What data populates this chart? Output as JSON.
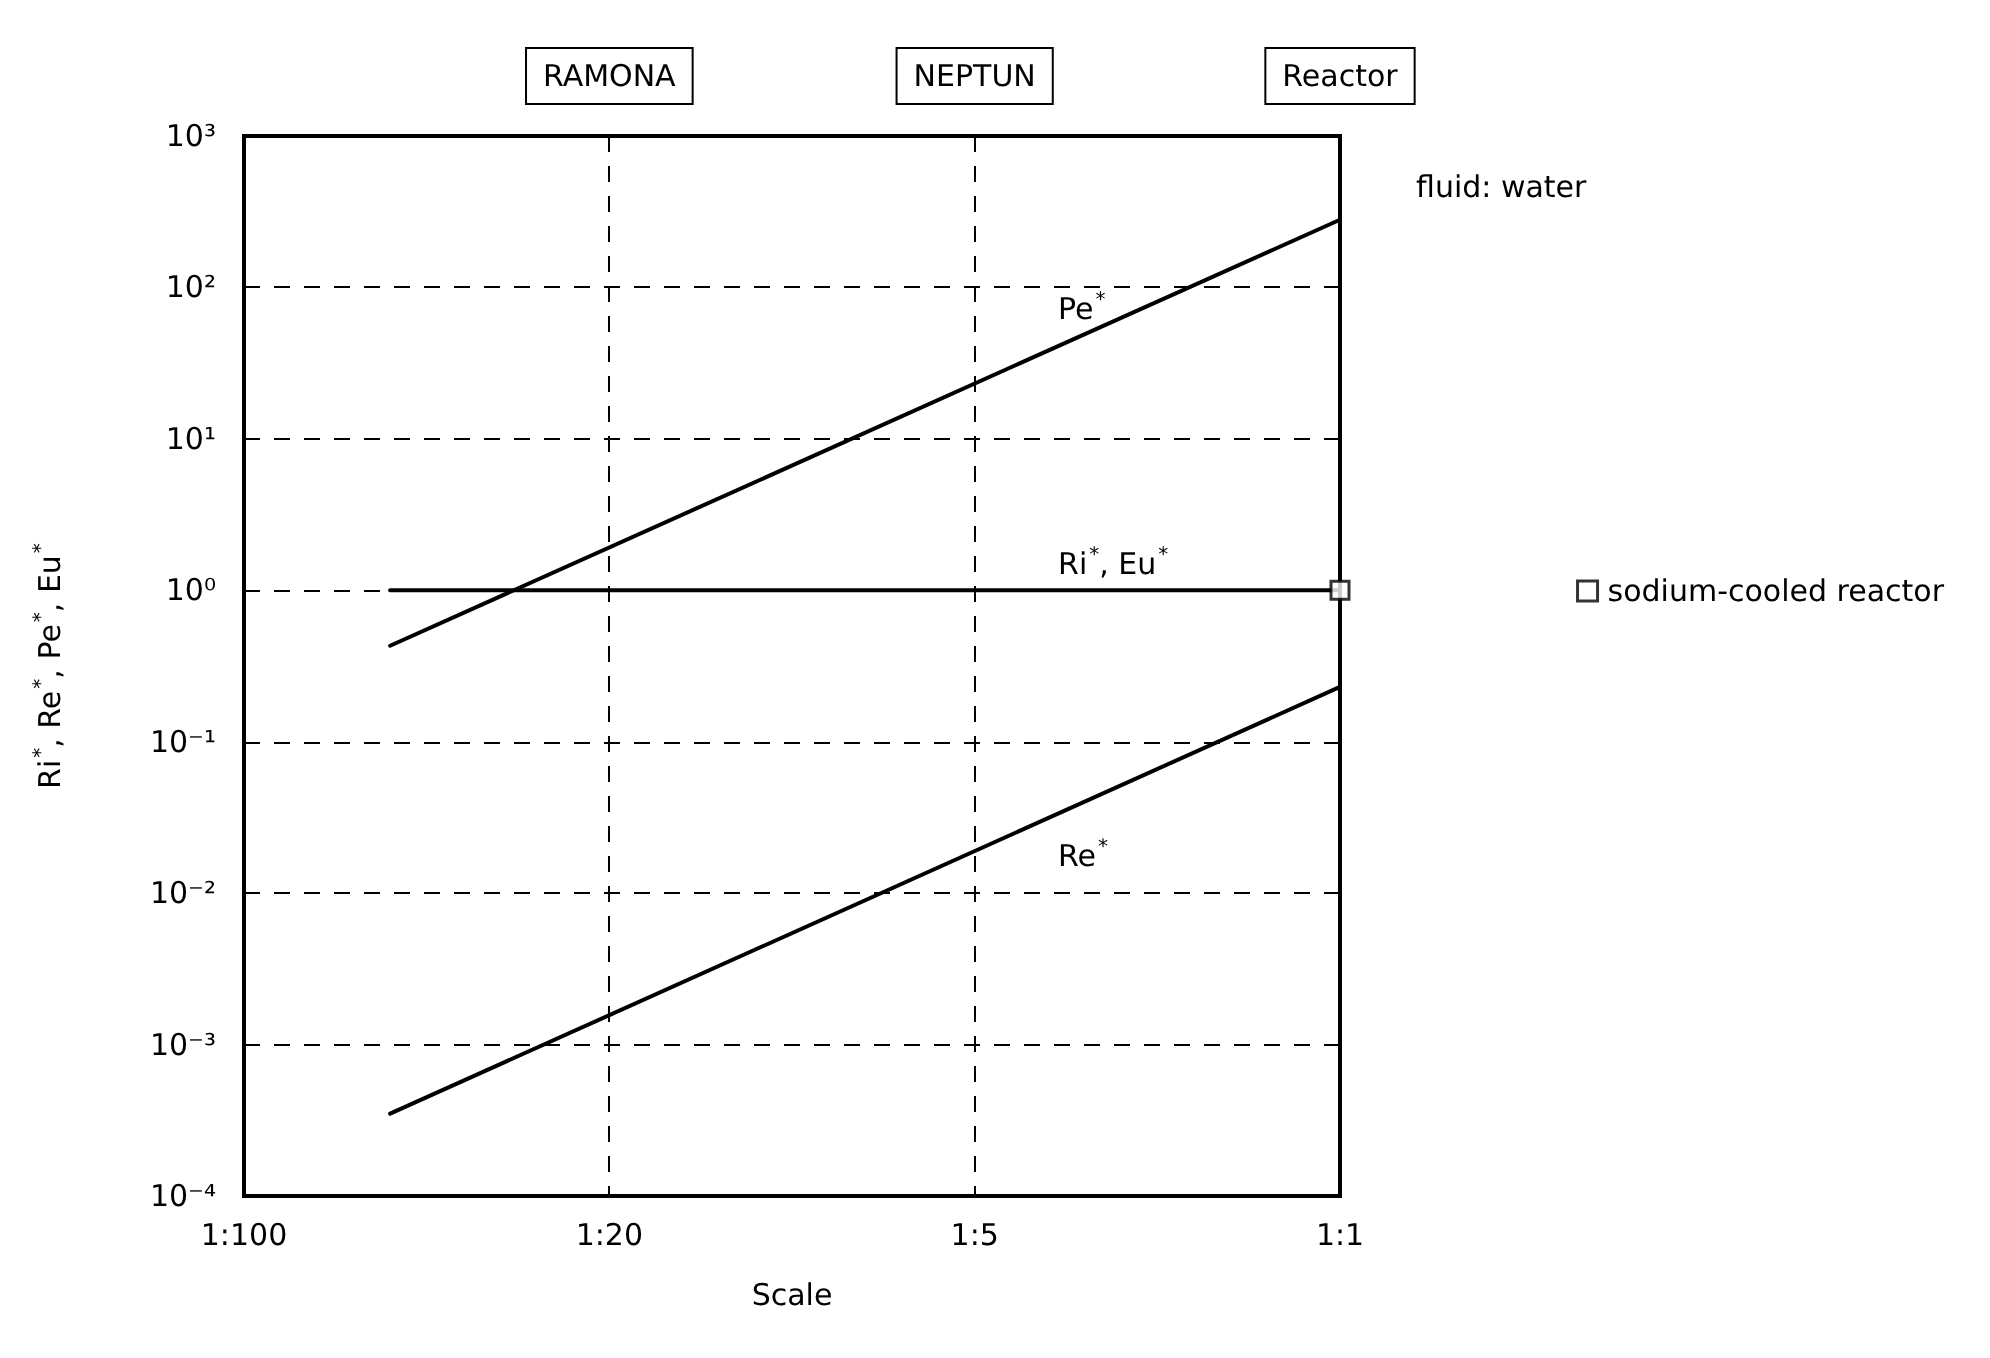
{
  "chart_data": {
    "type": "line",
    "xlabel": "Scale",
    "ylabel": "Ri$^{*}$, Re$^{*}$, Pe$^{*}$, Eu$^{*}$",
    "categories": [
      "1:100",
      null,
      null,
      null,
      null,
      "1:20",
      null,
      null,
      null,
      null,
      "1:5",
      null,
      null,
      null,
      null,
      "1:1"
    ],
    "ylim": [
      0.0001,
      1000
    ],
    "yticks": [
      {
        "value": 0.0001,
        "label": "10⁻⁴"
      },
      {
        "value": 0.001,
        "label": "10⁻³"
      },
      {
        "value": 0.01,
        "label": "10⁻²"
      },
      {
        "value": 0.1,
        "label": "10⁻¹"
      },
      {
        "value": 1,
        "label": "10⁰"
      },
      {
        "value": 10,
        "label": "10¹"
      },
      {
        "value": 100,
        "label": "10²"
      },
      {
        "value": 1000,
        "label": "10³"
      }
    ],
    "log": "y",
    "grid": true,
    "legend": "right",
    "marker": "none",
    "line_style": "solid",
    "series": [
      {
        "name": "Pe$^{*}$",
        "color": "#000000",
        "values": [
          null,
          null,
          0.43,
          null,
          null,
          null,
          null,
          null,
          null,
          null,
          null,
          null,
          null,
          null,
          null,
          280
        ]
      },
      {
        "name": "Ri$^{*}$, Eu$^{*}$",
        "color": "#000000",
        "values": [
          null,
          null,
          1,
          null,
          null,
          null,
          null,
          null,
          null,
          null,
          null,
          null,
          null,
          null,
          null,
          1
        ]
      },
      {
        "name": "Re$^{*}$",
        "color": "#000000",
        "values": [
          null,
          null,
          0.00035,
          null,
          null,
          null,
          null,
          null,
          null,
          null,
          null,
          null,
          null,
          null,
          null,
          0.23
        ]
      },
      {
        "name": "sodium-cooled reactor",
        "type": "scatter",
        "marker": "square",
        "color": "#000000",
        "values": [
          null,
          null,
          null,
          null,
          null,
          null,
          null,
          null,
          null,
          null,
          null,
          null,
          null,
          null,
          null,
          1
        ]
      }
    ],
    "annotations": [
      "RAMONA",
      "NEPTUN",
      "Reactor",
      "fluid: water"
    ]
  }
}
